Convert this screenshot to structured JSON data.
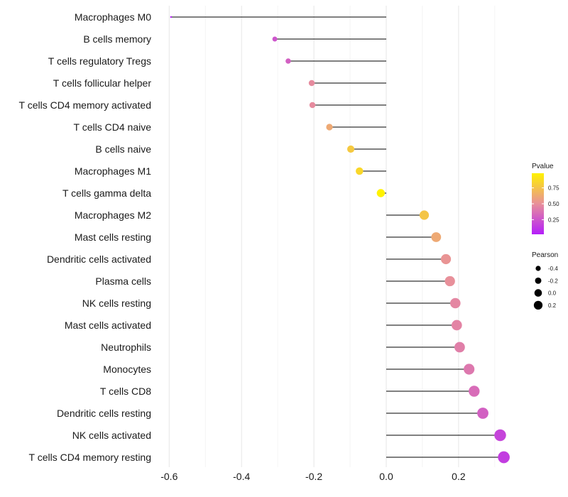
{
  "chart_data": {
    "type": "lollipop",
    "title": "",
    "xlabel": "",
    "ylabel": "",
    "xlim": [
      -0.67,
      0.36
    ],
    "x_ticks": [
      -0.6,
      -0.4,
      -0.2,
      0.0,
      0.2
    ],
    "x_tick_labels": [
      "-0.6",
      "-0.4",
      "-0.2",
      "0.0",
      "0.2"
    ],
    "grid": true,
    "categories": [
      "Macrophages M0",
      "B cells memory",
      "T cells regulatory  Tregs",
      "T cells follicular helper",
      "T cells CD4 memory activated",
      "T cells CD4 naive",
      "B cells naive",
      "Macrophages M1",
      "T cells gamma delta",
      "Macrophages M2",
      "Mast cells resting",
      "Dendritic cells activated",
      "Plasma cells",
      "NK cells resting",
      "Mast cells activated",
      "Neutrophils",
      "Monocytes",
      "T cells CD8",
      "Dendritic cells resting",
      "NK cells activated",
      "T cells CD4 memory resting"
    ],
    "pearson": [
      -0.595,
      -0.308,
      -0.271,
      -0.206,
      -0.204,
      -0.157,
      -0.098,
      -0.074,
      -0.015,
      0.105,
      0.138,
      0.165,
      0.176,
      0.191,
      0.195,
      0.203,
      0.229,
      0.243,
      0.267,
      0.315,
      0.325
    ],
    "pvalue": [
      0.02,
      0.25,
      0.3,
      0.48,
      0.48,
      0.62,
      0.78,
      0.85,
      0.98,
      0.76,
      0.62,
      0.52,
      0.5,
      0.46,
      0.45,
      0.43,
      0.4,
      0.35,
      0.3,
      0.18,
      0.15
    ],
    "legend_position": "right",
    "color_legend": {
      "title": "Pvalue",
      "ticks": [
        0.25,
        0.5,
        0.75
      ],
      "tick_labels": [
        "0.25",
        "0.50",
        "0.75"
      ],
      "range": [
        0.02,
        0.98
      ],
      "low_color": "#b41efa",
      "mid_color": "#e8909a",
      "high_color": "#fff200"
    },
    "size_legend": {
      "title": "Pearson",
      "entries": [
        -0.4,
        -0.2,
        0.0,
        0.2
      ],
      "entry_labels": [
        "-0.4",
        "-0.2",
        "0.0",
        "0.2"
      ]
    },
    "segment_color": "#000000"
  }
}
